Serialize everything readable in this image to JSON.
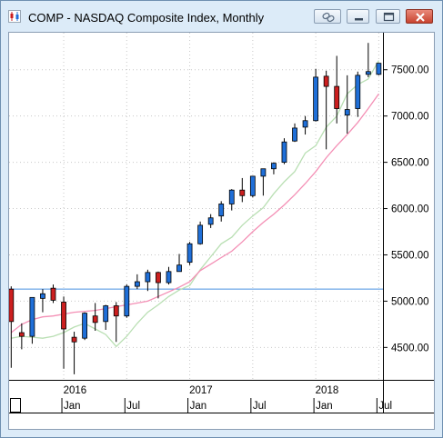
{
  "window": {
    "title": "COMP - NASDAQ Composite Index, Monthly"
  },
  "icons": {
    "app": "candlestick-chart-icon",
    "link": "link-icon",
    "minimize": "minimize-icon",
    "maximize": "maximize-icon",
    "close": "close-icon"
  },
  "chart_data": {
    "type": "candlestick",
    "title": "COMP - NASDAQ Composite Index, Monthly",
    "y_axis_position": "right",
    "y_ticks": [
      4500,
      5000,
      5500,
      6000,
      6500,
      7000,
      7500
    ],
    "y_tick_labels": [
      "4500.00",
      "5000.00",
      "5500.00",
      "6000.00",
      "6500.00",
      "7000.00",
      "7500.00"
    ],
    "ylim": [
      4150,
      7900
    ],
    "x_ticks": [
      {
        "index": 5,
        "label": "Jan"
      },
      {
        "index": 11,
        "label": "Jul"
      },
      {
        "index": 17,
        "label": "Jan"
      },
      {
        "index": 23,
        "label": "Jul"
      },
      {
        "index": 29,
        "label": "Jan"
      },
      {
        "index": 35,
        "label": "Jul"
      }
    ],
    "year_labels": [
      {
        "index": 6,
        "label": "2016"
      },
      {
        "index": 18,
        "label": "2017"
      },
      {
        "index": 30,
        "label": "2018"
      }
    ],
    "x_range": [
      -0.2,
      35.4
    ],
    "up_color": "#1f6fd8",
    "down_color": "#cc1f1f",
    "candles": [
      {
        "o": 5130,
        "h": 5160,
        "l": 4280,
        "c": 4780
      },
      {
        "o": 4660,
        "h": 4760,
        "l": 4480,
        "c": 4620
      },
      {
        "o": 4620,
        "h": 5020,
        "l": 4540,
        "c": 5040
      },
      {
        "o": 5030,
        "h": 5130,
        "l": 4880,
        "c": 5080
      },
      {
        "o": 5140,
        "h": 5180,
        "l": 4980,
        "c": 5010
      },
      {
        "o": 4990,
        "h": 5050,
        "l": 4270,
        "c": 4700
      },
      {
        "o": 4610,
        "h": 4670,
        "l": 4210,
        "c": 4560
      },
      {
        "o": 4600,
        "h": 4880,
        "l": 4580,
        "c": 4870
      },
      {
        "o": 4840,
        "h": 4980,
        "l": 4680,
        "c": 4770
      },
      {
        "o": 4780,
        "h": 4960,
        "l": 4690,
        "c": 4950
      },
      {
        "o": 4950,
        "h": 4990,
        "l": 4560,
        "c": 4840
      },
      {
        "o": 4840,
        "h": 5180,
        "l": 4820,
        "c": 5160
      },
      {
        "o": 5160,
        "h": 5290,
        "l": 5130,
        "c": 5210
      },
      {
        "o": 5210,
        "h": 5340,
        "l": 5110,
        "c": 5310
      },
      {
        "o": 5310,
        "h": 5320,
        "l": 5030,
        "c": 5200
      },
      {
        "o": 5200,
        "h": 5370,
        "l": 5180,
        "c": 5320
      },
      {
        "o": 5320,
        "h": 5510,
        "l": 5320,
        "c": 5390
      },
      {
        "o": 5420,
        "h": 5640,
        "l": 5390,
        "c": 5620
      },
      {
        "o": 5620,
        "h": 5860,
        "l": 5610,
        "c": 5820
      },
      {
        "o": 5830,
        "h": 5940,
        "l": 5790,
        "c": 5900
      },
      {
        "o": 5920,
        "h": 6080,
        "l": 5860,
        "c": 6050
      },
      {
        "o": 6050,
        "h": 6210,
        "l": 5980,
        "c": 6200
      },
      {
        "o": 6200,
        "h": 6330,
        "l": 6070,
        "c": 6140
      },
      {
        "o": 6140,
        "h": 6350,
        "l": 6120,
        "c": 6350
      },
      {
        "o": 6350,
        "h": 6430,
        "l": 6140,
        "c": 6430
      },
      {
        "o": 6430,
        "h": 6500,
        "l": 6370,
        "c": 6490
      },
      {
        "o": 6500,
        "h": 6760,
        "l": 6480,
        "c": 6720
      },
      {
        "o": 6730,
        "h": 6920,
        "l": 6720,
        "c": 6870
      },
      {
        "o": 6880,
        "h": 7000,
        "l": 6800,
        "c": 6950
      },
      {
        "o": 6950,
        "h": 7510,
        "l": 6940,
        "c": 7420
      },
      {
        "o": 7430,
        "h": 7490,
        "l": 6640,
        "c": 7320
      },
      {
        "o": 7320,
        "h": 7650,
        "l": 6920,
        "c": 7080
      },
      {
        "o": 7010,
        "h": 7440,
        "l": 6810,
        "c": 7070
      },
      {
        "o": 7080,
        "h": 7480,
        "l": 6990,
        "c": 7440
      },
      {
        "o": 7450,
        "h": 7790,
        "l": 7420,
        "c": 7480
      },
      {
        "o": 7450,
        "h": 7570,
        "l": 7440,
        "c": 7570
      }
    ],
    "series": [
      {
        "kind": "moving-average-short",
        "color": "#b9dfb3",
        "start_index": 0,
        "values": [
          4600,
          4620,
          4610,
          4600,
          4620,
          4660,
          4720,
          4760,
          4700,
          4640,
          4510,
          4620,
          4760,
          4880,
          4960,
          5050,
          5120,
          5170,
          5340,
          5480,
          5620,
          5690,
          5820,
          5920,
          6010,
          6160,
          6290,
          6400,
          6600,
          6680,
          6880,
          7000,
          7240,
          7340,
          7400,
          7600
        ]
      },
      {
        "kind": "moving-average-long",
        "color": "#f48fb5",
        "start_index": 0,
        "values": [
          4660,
          4750,
          4800,
          4830,
          4840,
          4860,
          4880,
          4890,
          4900,
          4920,
          4940,
          4960,
          4980,
          5000,
          5050,
          5100,
          5150,
          5210,
          5330,
          5400,
          5470,
          5540,
          5640,
          5750,
          5850,
          5940,
          6040,
          6150,
          6270,
          6400,
          6550,
          6680,
          6800,
          6930,
          7080,
          7240
        ]
      }
    ],
    "reference_line": {
      "value": 5130,
      "color": "#4a90e2"
    }
  }
}
